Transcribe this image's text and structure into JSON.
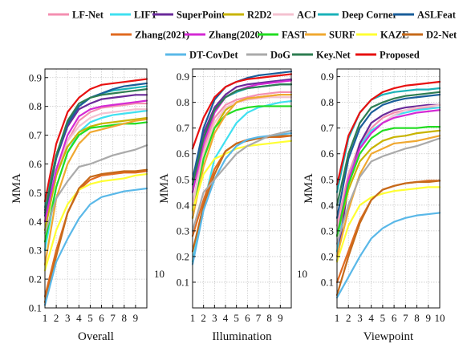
{
  "legend": [
    "LF-Net",
    "LIFT",
    "SuperPoint",
    "R2D2",
    "ACJ",
    "Deep Corner",
    "ASLFeat",
    "Zhang(2021)",
    "Zhang(2020)",
    "FAST",
    "SURF",
    "KAZE",
    "D2-Net",
    "DT-CovDet",
    "DoG",
    "Key.Net",
    "Proposed"
  ],
  "colors": {
    "LF-Net": "#f48fb1",
    "LIFT": "#40e0f0",
    "SuperPoint": "#6a2a9a",
    "R2D2": "#c8b400",
    "ACJ": "#f4c2d0",
    "Deep Corner": "#1ab2b8",
    "ASLFeat": "#1a5e9a",
    "Zhang(2021)": "#e06a20",
    "Zhang(2020)": "#d42ad4",
    "FAST": "#22dd22",
    "SURF": "#f0a830",
    "KAZE": "#ffff33",
    "D2-Net": "#c66a1a",
    "DT-CovDet": "#5ab8e8",
    "DoG": "#aaaaaa",
    "Key.Net": "#2e7d52",
    "Proposed": "#e81010"
  },
  "stray_labels": {
    "illumination": "10",
    "viewpoint": "10"
  },
  "chart_data": [
    {
      "type": "line",
      "xlabel": "Overall",
      "ylabel": "MMA",
      "x": [
        1,
        2,
        3,
        4,
        5,
        6,
        7,
        8,
        9,
        10
      ],
      "xticks": [
        1,
        2,
        3,
        4,
        5,
        6,
        7,
        8,
        9
      ],
      "yticks": [
        0.1,
        0.2,
        0.3,
        0.4,
        0.5,
        0.6,
        0.7,
        0.8,
        0.9
      ],
      "xlim": [
        1,
        10
      ],
      "ylim": [
        0.1,
        0.93
      ],
      "grid": true,
      "series": [
        {
          "name": "LF-Net",
          "values": [
            0.4,
            0.56,
            0.68,
            0.75,
            0.78,
            0.795,
            0.8,
            0.805,
            0.81,
            0.81
          ]
        },
        {
          "name": "LIFT",
          "values": [
            0.3,
            0.52,
            0.64,
            0.71,
            0.745,
            0.76,
            0.77,
            0.775,
            0.78,
            0.785
          ]
        },
        {
          "name": "SuperPoint",
          "values": [
            0.44,
            0.62,
            0.73,
            0.79,
            0.81,
            0.825,
            0.83,
            0.835,
            0.84,
            0.84
          ]
        },
        {
          "name": "R2D2",
          "values": [
            0.37,
            0.56,
            0.66,
            0.71,
            0.73,
            0.74,
            0.745,
            0.75,
            0.755,
            0.76
          ]
        },
        {
          "name": "ACJ",
          "values": [
            0.4,
            0.58,
            0.68,
            0.73,
            0.76,
            0.775,
            0.78,
            0.785,
            0.79,
            0.79
          ]
        },
        {
          "name": "Deep Corner",
          "values": [
            0.45,
            0.63,
            0.74,
            0.8,
            0.83,
            0.845,
            0.855,
            0.86,
            0.865,
            0.87
          ]
        },
        {
          "name": "ASLFeat",
          "values": [
            0.42,
            0.62,
            0.74,
            0.8,
            0.83,
            0.845,
            0.86,
            0.87,
            0.875,
            0.88
          ]
        },
        {
          "name": "Zhang(2021)",
          "values": [
            0.14,
            0.3,
            0.43,
            0.51,
            0.545,
            0.56,
            0.565,
            0.57,
            0.57,
            0.575
          ]
        },
        {
          "name": "Zhang(2020)",
          "values": [
            0.4,
            0.58,
            0.7,
            0.765,
            0.79,
            0.8,
            0.805,
            0.81,
            0.815,
            0.82
          ]
        },
        {
          "name": "FAST",
          "values": [
            0.33,
            0.52,
            0.64,
            0.7,
            0.725,
            0.73,
            0.735,
            0.74,
            0.74,
            0.745
          ]
        },
        {
          "name": "SURF",
          "values": [
            0.25,
            0.48,
            0.6,
            0.67,
            0.71,
            0.72,
            0.73,
            0.74,
            0.75,
            0.755
          ]
        },
        {
          "name": "KAZE",
          "values": [
            0.23,
            0.37,
            0.46,
            0.51,
            0.53,
            0.54,
            0.545,
            0.55,
            0.56,
            0.565
          ]
        },
        {
          "name": "D2-Net",
          "values": [
            0.12,
            0.28,
            0.43,
            0.515,
            0.555,
            0.565,
            0.57,
            0.575,
            0.575,
            0.58
          ]
        },
        {
          "name": "DT-CovDet",
          "values": [
            0.11,
            0.26,
            0.34,
            0.41,
            0.46,
            0.485,
            0.495,
            0.505,
            0.51,
            0.515
          ]
        },
        {
          "name": "DoG",
          "values": [
            0.36,
            0.48,
            0.54,
            0.59,
            0.6,
            0.615,
            0.63,
            0.64,
            0.65,
            0.665
          ]
        },
        {
          "name": "Key.Net",
          "values": [
            0.43,
            0.63,
            0.75,
            0.81,
            0.83,
            0.84,
            0.845,
            0.85,
            0.855,
            0.86
          ]
        },
        {
          "name": "Proposed",
          "values": [
            0.47,
            0.67,
            0.78,
            0.83,
            0.86,
            0.875,
            0.88,
            0.885,
            0.89,
            0.895
          ]
        }
      ]
    },
    {
      "type": "line",
      "xlabel": "Illumination",
      "ylabel": "MMA",
      "x": [
        1,
        2,
        3,
        4,
        5,
        6,
        7,
        8,
        9,
        10
      ],
      "xticks": [
        1,
        2,
        3,
        4,
        5,
        6,
        7,
        8,
        9
      ],
      "yticks": [
        0.1,
        0.2,
        0.3,
        0.4,
        0.5,
        0.6,
        0.7,
        0.8,
        0.9
      ],
      "xlim": [
        1,
        10
      ],
      "ylim": [
        0.0,
        0.93
      ],
      "grid": true,
      "series": [
        {
          "name": "LF-Net",
          "values": [
            0.4,
            0.62,
            0.74,
            0.79,
            0.81,
            0.82,
            0.83,
            0.835,
            0.84,
            0.84
          ]
        },
        {
          "name": "LIFT",
          "values": [
            0.18,
            0.4,
            0.58,
            0.65,
            0.72,
            0.76,
            0.78,
            0.79,
            0.8,
            0.805
          ]
        },
        {
          "name": "SuperPoint",
          "values": [
            0.5,
            0.68,
            0.78,
            0.83,
            0.86,
            0.87,
            0.875,
            0.88,
            0.885,
            0.89
          ]
        },
        {
          "name": "R2D2",
          "values": [
            0.38,
            0.58,
            0.7,
            0.77,
            0.8,
            0.815,
            0.82,
            0.825,
            0.83,
            0.83
          ]
        },
        {
          "name": "ACJ",
          "values": [
            0.4,
            0.6,
            0.72,
            0.78,
            0.8,
            0.81,
            0.815,
            0.82,
            0.82,
            0.82
          ]
        },
        {
          "name": "Deep Corner",
          "values": [
            0.45,
            0.66,
            0.77,
            0.82,
            0.84,
            0.855,
            0.86,
            0.865,
            0.87,
            0.87
          ]
        },
        {
          "name": "ASLFeat",
          "values": [
            0.5,
            0.7,
            0.81,
            0.86,
            0.88,
            0.895,
            0.905,
            0.91,
            0.915,
            0.92
          ]
        },
        {
          "name": "Zhang(2021)",
          "values": [
            0.28,
            0.42,
            0.54,
            0.61,
            0.64,
            0.655,
            0.66,
            0.665,
            0.665,
            0.67
          ]
        },
        {
          "name": "Zhang(2020)",
          "values": [
            0.45,
            0.64,
            0.76,
            0.82,
            0.845,
            0.86,
            0.87,
            0.875,
            0.88,
            0.885
          ]
        },
        {
          "name": "FAST",
          "values": [
            0.35,
            0.58,
            0.7,
            0.75,
            0.77,
            0.78,
            0.785,
            0.785,
            0.785,
            0.785
          ]
        },
        {
          "name": "SURF",
          "values": [
            0.35,
            0.55,
            0.68,
            0.75,
            0.8,
            0.815,
            0.82,
            0.825,
            0.83,
            0.83
          ]
        },
        {
          "name": "KAZE",
          "values": [
            0.38,
            0.52,
            0.58,
            0.6,
            0.62,
            0.63,
            0.635,
            0.64,
            0.645,
            0.65
          ]
        },
        {
          "name": "D2-Net",
          "values": [
            0.22,
            0.4,
            0.52,
            0.61,
            0.64,
            0.65,
            0.66,
            0.665,
            0.67,
            0.67
          ]
        },
        {
          "name": "DT-CovDet",
          "values": [
            0.17,
            0.38,
            0.5,
            0.58,
            0.63,
            0.655,
            0.665,
            0.67,
            0.675,
            0.68
          ]
        },
        {
          "name": "DoG",
          "values": [
            0.3,
            0.45,
            0.5,
            0.55,
            0.6,
            0.63,
            0.65,
            0.67,
            0.68,
            0.69
          ]
        },
        {
          "name": "Key.Net",
          "values": [
            0.48,
            0.66,
            0.77,
            0.82,
            0.845,
            0.855,
            0.86,
            0.865,
            0.87,
            0.87
          ]
        },
        {
          "name": "Proposed",
          "values": [
            0.62,
            0.74,
            0.82,
            0.86,
            0.88,
            0.89,
            0.895,
            0.9,
            0.905,
            0.91
          ]
        }
      ]
    },
    {
      "type": "line",
      "xlabel": "Viewpoint",
      "ylabel": "MMA",
      "x": [
        1,
        2,
        3,
        4,
        5,
        6,
        7,
        8,
        9,
        10
      ],
      "xticks": [
        1,
        2,
        3,
        4,
        5,
        6,
        7,
        8,
        9,
        10
      ],
      "yticks": [
        0.1,
        0.2,
        0.3,
        0.4,
        0.5,
        0.6,
        0.7,
        0.8,
        0.9
      ],
      "xlim": [
        1,
        10
      ],
      "ylim": [
        0.0,
        0.93
      ],
      "grid": true,
      "series": [
        {
          "name": "LF-Net",
          "values": [
            0.32,
            0.52,
            0.64,
            0.7,
            0.74,
            0.76,
            0.77,
            0.775,
            0.78,
            0.78
          ]
        },
        {
          "name": "LIFT",
          "values": [
            0.22,
            0.5,
            0.63,
            0.69,
            0.72,
            0.75,
            0.76,
            0.77,
            0.775,
            0.78
          ]
        },
        {
          "name": "SuperPoint",
          "values": [
            0.18,
            0.48,
            0.64,
            0.72,
            0.75,
            0.77,
            0.78,
            0.785,
            0.79,
            0.79
          ]
        },
        {
          "name": "R2D2",
          "values": [
            0.28,
            0.46,
            0.57,
            0.62,
            0.65,
            0.665,
            0.67,
            0.68,
            0.685,
            0.69
          ]
        },
        {
          "name": "ACJ",
          "values": [
            0.3,
            0.5,
            0.62,
            0.68,
            0.72,
            0.75,
            0.77,
            0.78,
            0.785,
            0.79
          ]
        },
        {
          "name": "Deep Corner",
          "values": [
            0.45,
            0.66,
            0.76,
            0.81,
            0.83,
            0.84,
            0.845,
            0.85,
            0.85,
            0.855
          ]
        },
        {
          "name": "ASLFeat",
          "values": [
            0.35,
            0.58,
            0.7,
            0.76,
            0.79,
            0.805,
            0.815,
            0.82,
            0.825,
            0.83
          ]
        },
        {
          "name": "Zhang(2021)",
          "values": [
            0.1,
            0.22,
            0.34,
            0.42,
            0.46,
            0.475,
            0.485,
            0.49,
            0.495,
            0.495
          ]
        },
        {
          "name": "Zhang(2020)",
          "values": [
            0.28,
            0.5,
            0.62,
            0.68,
            0.72,
            0.74,
            0.75,
            0.76,
            0.765,
            0.77
          ]
        },
        {
          "name": "FAST",
          "values": [
            0.28,
            0.48,
            0.6,
            0.66,
            0.69,
            0.7,
            0.7,
            0.7,
            0.705,
            0.705
          ]
        },
        {
          "name": "SURF",
          "values": [
            0.2,
            0.38,
            0.52,
            0.6,
            0.62,
            0.64,
            0.645,
            0.65,
            0.66,
            0.67
          ]
        },
        {
          "name": "KAZE",
          "values": [
            0.18,
            0.32,
            0.4,
            0.43,
            0.445,
            0.455,
            0.46,
            0.465,
            0.47,
            0.47
          ]
        },
        {
          "name": "D2-Net",
          "values": [
            0.05,
            0.2,
            0.33,
            0.42,
            0.46,
            0.475,
            0.485,
            0.49,
            0.49,
            0.495
          ]
        },
        {
          "name": "DT-CovDet",
          "values": [
            0.04,
            0.12,
            0.2,
            0.27,
            0.31,
            0.335,
            0.35,
            0.36,
            0.365,
            0.37
          ]
        },
        {
          "name": "DoG",
          "values": [
            0.25,
            0.4,
            0.51,
            0.57,
            0.59,
            0.605,
            0.62,
            0.63,
            0.645,
            0.66
          ]
        },
        {
          "name": "Key.Net",
          "values": [
            0.4,
            0.6,
            0.72,
            0.78,
            0.8,
            0.815,
            0.825,
            0.83,
            0.835,
            0.84
          ]
        },
        {
          "name": "Proposed",
          "values": [
            0.48,
            0.67,
            0.76,
            0.81,
            0.84,
            0.855,
            0.865,
            0.87,
            0.875,
            0.88
          ]
        }
      ]
    }
  ]
}
